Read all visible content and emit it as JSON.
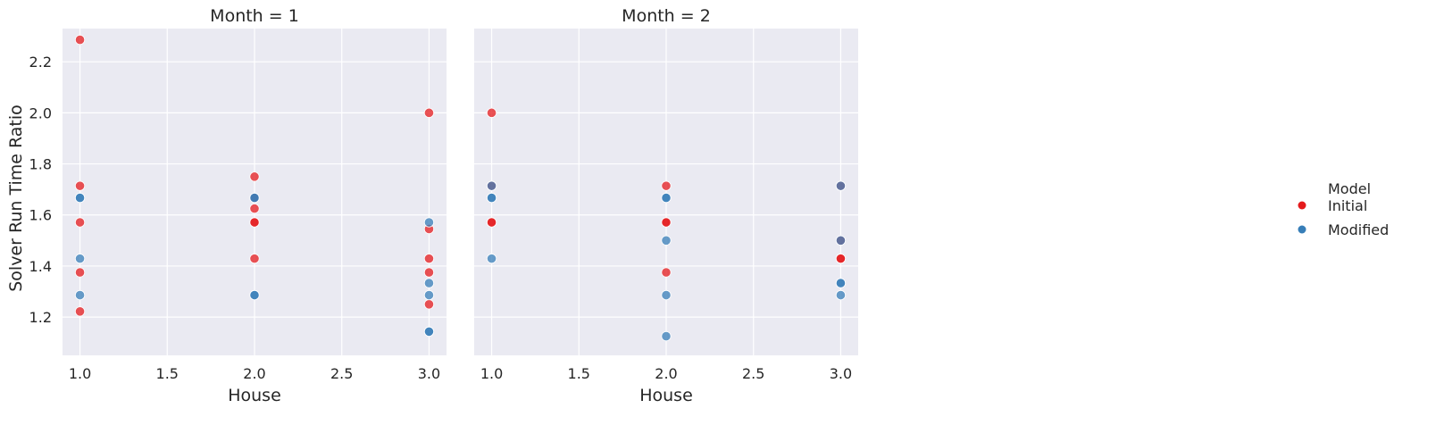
{
  "chart_data": {
    "type": "scatter",
    "ylabel": "Solver Run Time Ratio",
    "xlim": [
      0.9,
      3.1
    ],
    "ylim": [
      1.05,
      2.33
    ],
    "xticks": [
      1.0,
      1.5,
      2.0,
      2.5,
      3.0
    ],
    "xtick_labels": [
      "1.0",
      "1.5",
      "2.0",
      "2.5",
      "3.0"
    ],
    "yticks": [
      1.2,
      1.4,
      1.6,
      1.8,
      2.0,
      2.2
    ],
    "ytick_labels": [
      "1.2",
      "1.4",
      "1.6",
      "1.8",
      "2.0",
      "2.2"
    ],
    "grid": true,
    "legend": {
      "title": "Model",
      "placement": "right",
      "entries": [
        {
          "label": "Initial",
          "color": "#e41a1c"
        },
        {
          "label": "Modified",
          "color": "#377eb8"
        }
      ]
    },
    "panels": [
      {
        "title": "Month = 1",
        "xlabel": "House",
        "series": [
          {
            "name": "Initial",
            "points": [
              [
                1.0,
                2.286
              ],
              [
                1.0,
                1.714
              ],
              [
                1.0,
                1.571
              ],
              [
                1.0,
                1.375
              ],
              [
                1.0,
                1.222
              ],
              [
                2.0,
                1.75
              ],
              [
                2.0,
                1.667
              ],
              [
                2.0,
                1.625
              ],
              [
                2.0,
                1.571
              ],
              [
                2.0,
                1.571
              ],
              [
                2.0,
                1.429
              ],
              [
                3.0,
                2.0
              ],
              [
                3.0,
                1.545
              ],
              [
                3.0,
                1.429
              ],
              [
                3.0,
                1.375
              ],
              [
                3.0,
                1.25
              ]
            ]
          },
          {
            "name": "Modified",
            "points": [
              [
                1.0,
                1.667
              ],
              [
                1.0,
                1.667
              ],
              [
                1.0,
                1.429
              ],
              [
                1.0,
                1.286
              ],
              [
                2.0,
                1.667
              ],
              [
                2.0,
                1.667
              ],
              [
                2.0,
                1.286
              ],
              [
                2.0,
                1.286
              ],
              [
                3.0,
                1.571
              ],
              [
                3.0,
                1.333
              ],
              [
                3.0,
                1.286
              ],
              [
                3.0,
                1.143
              ],
              [
                3.0,
                1.143
              ]
            ]
          }
        ]
      },
      {
        "title": "Month = 2",
        "xlabel": "House",
        "series": [
          {
            "name": "Initial",
            "points": [
              [
                1.0,
                2.0
              ],
              [
                1.0,
                1.714
              ],
              [
                1.0,
                1.571
              ],
              [
                1.0,
                1.571
              ],
              [
                2.0,
                1.714
              ],
              [
                2.0,
                1.571
              ],
              [
                2.0,
                1.571
              ],
              [
                2.0,
                1.375
              ],
              [
                3.0,
                1.714
              ],
              [
                3.0,
                1.5
              ],
              [
                3.0,
                1.429
              ],
              [
                3.0,
                1.429
              ]
            ]
          },
          {
            "name": "Modified",
            "points": [
              [
                1.0,
                1.714
              ],
              [
                1.0,
                1.667
              ],
              [
                1.0,
                1.667
              ],
              [
                1.0,
                1.429
              ],
              [
                2.0,
                1.667
              ],
              [
                2.0,
                1.667
              ],
              [
                2.0,
                1.5
              ],
              [
                2.0,
                1.286
              ],
              [
                2.0,
                1.125
              ],
              [
                3.0,
                1.714
              ],
              [
                3.0,
                1.5
              ],
              [
                3.0,
                1.333
              ],
              [
                3.0,
                1.333
              ],
              [
                3.0,
                1.286
              ]
            ]
          }
        ]
      }
    ]
  }
}
